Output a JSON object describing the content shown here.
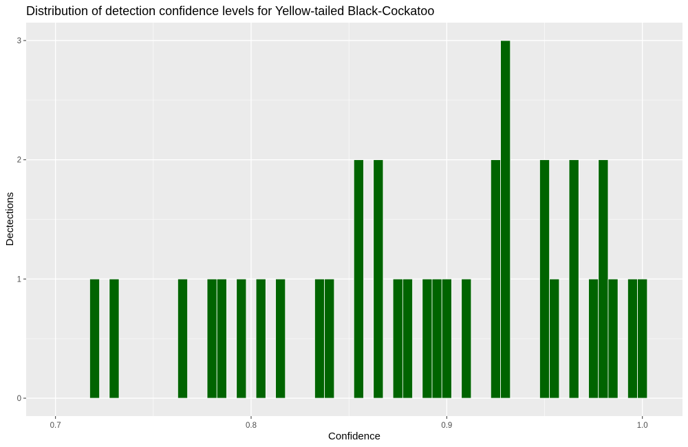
{
  "chart_data": {
    "type": "bar",
    "title": "Distribution of detection confidence levels for Yellow-tailed Black-Cockatoo",
    "xlabel": "Confidence",
    "ylabel": "Dectections",
    "xlim": [
      0.685,
      1.0205
    ],
    "ylim": [
      -0.15,
      3.15
    ],
    "bin_width": 0.005,
    "x_ticks": [
      0.7,
      0.8,
      0.9,
      1.0
    ],
    "x_tick_labels": [
      "0.7",
      "0.8",
      "0.9",
      "1.0"
    ],
    "y_ticks": [
      0,
      1,
      2,
      3
    ],
    "y_tick_labels": [
      "0",
      "1",
      "2",
      "3"
    ],
    "grid": true,
    "legend": "none",
    "colors": {
      "bar": "#006400",
      "bar_edge": "#ffffff",
      "panel": "#ebebeb"
    },
    "x": [
      0.72,
      0.73,
      0.765,
      0.78,
      0.785,
      0.795,
      0.805,
      0.815,
      0.835,
      0.84,
      0.855,
      0.865,
      0.875,
      0.88,
      0.89,
      0.895,
      0.9,
      0.91,
      0.925,
      0.93,
      0.95,
      0.955,
      0.965,
      0.975,
      0.98,
      0.985,
      0.995,
      1.0
    ],
    "values": [
      1,
      1,
      1,
      1,
      1,
      1,
      1,
      1,
      1,
      1,
      2,
      2,
      1,
      1,
      1,
      1,
      1,
      1,
      2,
      3,
      2,
      1,
      2,
      1,
      2,
      1,
      1,
      1
    ]
  }
}
